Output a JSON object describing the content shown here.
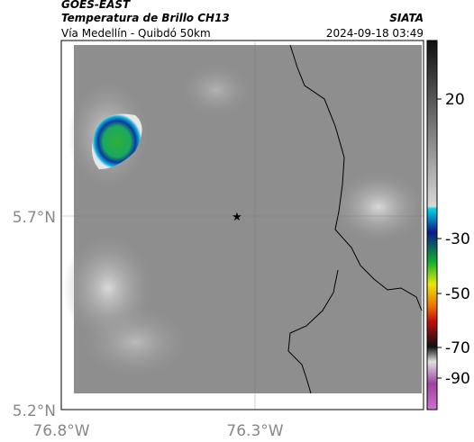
{
  "header": {
    "source": "GOES-EAST",
    "product": "Temperatura de Brillo CH13",
    "agency": "SIATA",
    "route": "Vía Medellín - Quibdó 50km",
    "timestamp": "2024-09-18 03:49"
  },
  "axes": {
    "lat_ticks": [
      "5.7°N",
      "5.2°N"
    ],
    "lon_ticks": [
      "76.8°W",
      "76.3°W"
    ]
  },
  "colorbar": {
    "ticks": [
      20,
      -30,
      -50,
      -70,
      -90
    ]
  }
}
